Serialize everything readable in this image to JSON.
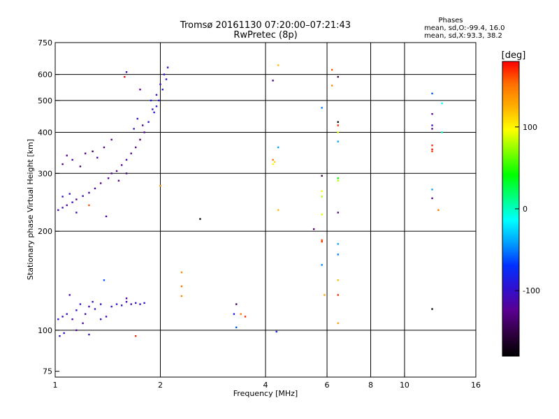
{
  "chart_data": {
    "type": "scatter",
    "title": "Tromsø 20161130 07:20:00–07:21:43",
    "subtitle": "RwPretec (8p)",
    "xlabel": "Frequency [MHz]",
    "ylabel": "Stationary phase Virtual Height [km]",
    "x_scale": "log",
    "y_scale": "log",
    "xlim": [
      1,
      16
    ],
    "ylim": [
      72,
      750
    ],
    "x_ticks": [
      1,
      2,
      4,
      6,
      8,
      10,
      16
    ],
    "x_gridlines": [
      2,
      4,
      6,
      8,
      10
    ],
    "y_ticks": [
      75,
      100,
      200,
      300,
      400,
      500,
      600,
      750
    ],
    "y_gridlines": [
      100,
      200,
      300,
      400,
      500,
      600
    ],
    "grid": true,
    "stats": {
      "heading": "Phases",
      "line1_label": "mean, sd,O:",
      "line1_values": "-99.4, 16.0",
      "line2_label": "mean, sd,X:",
      "line2_values": "93.3, 38.2"
    },
    "colorbar": {
      "label": "[deg]",
      "range": [
        -180,
        180
      ],
      "ticks": [
        -100,
        0,
        100
      ],
      "colormap": [
        "#000000",
        "#300040",
        "#5a0090",
        "#3010d0",
        "#0030ff",
        "#00a0ff",
        "#00ffff",
        "#00ff80",
        "#00ff00",
        "#80ff00",
        "#ffff00",
        "#ffb000",
        "#ff7000",
        "#ff0000"
      ]
    },
    "points": [
      {
        "x": 1.02,
        "y": 232,
        "phase": -110
      },
      {
        "x": 1.05,
        "y": 236,
        "phase": -105
      },
      {
        "x": 1.08,
        "y": 240,
        "phase": -115
      },
      {
        "x": 1.12,
        "y": 245,
        "phase": -100
      },
      {
        "x": 1.15,
        "y": 250,
        "phase": -120
      },
      {
        "x": 1.2,
        "y": 256,
        "phase": -108
      },
      {
        "x": 1.25,
        "y": 262,
        "phase": -112
      },
      {
        "x": 1.3,
        "y": 270,
        "phase": -118
      },
      {
        "x": 1.1,
        "y": 260,
        "phase": -102
      },
      {
        "x": 1.05,
        "y": 255,
        "phase": -98
      },
      {
        "x": 1.15,
        "y": 228,
        "phase": -104
      },
      {
        "x": 1.35,
        "y": 280,
        "phase": -122
      },
      {
        "x": 1.05,
        "y": 320,
        "phase": -130
      },
      {
        "x": 1.08,
        "y": 340,
        "phase": -125
      },
      {
        "x": 1.12,
        "y": 330,
        "phase": -110
      },
      {
        "x": 1.18,
        "y": 315,
        "phase": -135
      },
      {
        "x": 1.22,
        "y": 345,
        "phase": -128
      },
      {
        "x": 1.28,
        "y": 350,
        "phase": -140
      },
      {
        "x": 1.32,
        "y": 335,
        "phase": -115
      },
      {
        "x": 1.38,
        "y": 360,
        "phase": -132
      },
      {
        "x": 1.42,
        "y": 290,
        "phase": -118
      },
      {
        "x": 1.45,
        "y": 300,
        "phase": -126
      },
      {
        "x": 1.5,
        "y": 305,
        "phase": -130
      },
      {
        "x": 1.55,
        "y": 318,
        "phase": -120
      },
      {
        "x": 1.6,
        "y": 330,
        "phase": -112
      },
      {
        "x": 1.65,
        "y": 345,
        "phase": -124
      },
      {
        "x": 1.7,
        "y": 360,
        "phase": -132
      },
      {
        "x": 1.75,
        "y": 380,
        "phase": -140
      },
      {
        "x": 1.8,
        "y": 400,
        "phase": -125
      },
      {
        "x": 1.78,
        "y": 420,
        "phase": -118
      },
      {
        "x": 1.68,
        "y": 410,
        "phase": -110
      },
      {
        "x": 1.72,
        "y": 440,
        "phase": -105
      },
      {
        "x": 1.6,
        "y": 300,
        "phase": -135
      },
      {
        "x": 1.52,
        "y": 285,
        "phase": -128
      },
      {
        "x": 1.85,
        "y": 430,
        "phase": -100
      },
      {
        "x": 1.9,
        "y": 470,
        "phase": -95
      },
      {
        "x": 1.95,
        "y": 520,
        "phase": -110
      },
      {
        "x": 2.0,
        "y": 560,
        "phase": -105
      },
      {
        "x": 2.05,
        "y": 600,
        "phase": -98
      },
      {
        "x": 2.1,
        "y": 630,
        "phase": -102
      },
      {
        "x": 2.08,
        "y": 580,
        "phase": -92
      },
      {
        "x": 2.03,
        "y": 540,
        "phase": -88
      },
      {
        "x": 1.98,
        "y": 500,
        "phase": -96
      },
      {
        "x": 1.92,
        "y": 460,
        "phase": -90
      },
      {
        "x": 1.88,
        "y": 500,
        "phase": -85
      },
      {
        "x": 1.95,
        "y": 480,
        "phase": -80
      },
      {
        "x": 1.75,
        "y": 540,
        "phase": -120
      },
      {
        "x": 1.6,
        "y": 610,
        "phase": -110
      },
      {
        "x": 1.58,
        "y": 590,
        "phase": 180
      },
      {
        "x": 1.45,
        "y": 380,
        "phase": -125
      },
      {
        "x": 1.4,
        "y": 222,
        "phase": -115
      },
      {
        "x": 1.25,
        "y": 240,
        "phase": 160
      },
      {
        "x": 1.02,
        "y": 108,
        "phase": -100
      },
      {
        "x": 1.05,
        "y": 110,
        "phase": -105
      },
      {
        "x": 1.08,
        "y": 112,
        "phase": -98
      },
      {
        "x": 1.12,
        "y": 108,
        "phase": -110
      },
      {
        "x": 1.15,
        "y": 115,
        "phase": -102
      },
      {
        "x": 1.18,
        "y": 120,
        "phase": -95
      },
      {
        "x": 1.22,
        "y": 112,
        "phase": -108
      },
      {
        "x": 1.25,
        "y": 118,
        "phase": -112
      },
      {
        "x": 1.28,
        "y": 122,
        "phase": -100
      },
      {
        "x": 1.3,
        "y": 116,
        "phase": -104
      },
      {
        "x": 1.35,
        "y": 120,
        "phase": -96
      },
      {
        "x": 1.4,
        "y": 110,
        "phase": -108
      },
      {
        "x": 1.45,
        "y": 118,
        "phase": -100
      },
      {
        "x": 1.5,
        "y": 120,
        "phase": -95
      },
      {
        "x": 1.55,
        "y": 119,
        "phase": -102
      },
      {
        "x": 1.6,
        "y": 122,
        "phase": -110
      },
      {
        "x": 1.65,
        "y": 120,
        "phase": -105
      },
      {
        "x": 1.7,
        "y": 121,
        "phase": -98
      },
      {
        "x": 1.75,
        "y": 120,
        "phase": -100
      },
      {
        "x": 1.8,
        "y": 121,
        "phase": -95
      },
      {
        "x": 1.1,
        "y": 128,
        "phase": -112
      },
      {
        "x": 1.2,
        "y": 105,
        "phase": -118
      },
      {
        "x": 1.03,
        "y": 96,
        "phase": -104
      },
      {
        "x": 1.06,
        "y": 98,
        "phase": -100
      },
      {
        "x": 1.15,
        "y": 100,
        "phase": -115
      },
      {
        "x": 1.25,
        "y": 97,
        "phase": -106
      },
      {
        "x": 1.38,
        "y": 142,
        "phase": -60
      },
      {
        "x": 1.35,
        "y": 108,
        "phase": -108
      },
      {
        "x": 1.7,
        "y": 96,
        "phase": 170
      },
      {
        "x": 1.6,
        "y": 125,
        "phase": -120
      },
      {
        "x": 2.0,
        "y": 275,
        "phase": 140
      },
      {
        "x": 2.3,
        "y": 150,
        "phase": 140
      },
      {
        "x": 2.3,
        "y": 136,
        "phase": 150
      },
      {
        "x": 2.3,
        "y": 127,
        "phase": 145
      },
      {
        "x": 2.6,
        "y": 218,
        "phase": -175
      },
      {
        "x": 3.3,
        "y": 120,
        "phase": -140
      },
      {
        "x": 3.25,
        "y": 112,
        "phase": -90
      },
      {
        "x": 3.4,
        "y": 112,
        "phase": 150
      },
      {
        "x": 3.5,
        "y": 110,
        "phase": 170
      },
      {
        "x": 3.3,
        "y": 102,
        "phase": -60
      },
      {
        "x": 4.2,
        "y": 575,
        "phase": -120
      },
      {
        "x": 4.35,
        "y": 640,
        "phase": 120
      },
      {
        "x": 4.2,
        "y": 330,
        "phase": 150
      },
      {
        "x": 4.25,
        "y": 325,
        "phase": 110
      },
      {
        "x": 4.2,
        "y": 320,
        "phase": 100
      },
      {
        "x": 4.35,
        "y": 360,
        "phase": -40
      },
      {
        "x": 4.35,
        "y": 232,
        "phase": 120
      },
      {
        "x": 4.3,
        "y": 99,
        "phase": -80
      },
      {
        "x": 5.5,
        "y": 203,
        "phase": -140
      },
      {
        "x": 5.8,
        "y": 188,
        "phase": 160
      },
      {
        "x": 5.8,
        "y": 186,
        "phase": 170
      },
      {
        "x": 5.8,
        "y": 158,
        "phase": -50
      },
      {
        "x": 5.9,
        "y": 128,
        "phase": 130
      },
      {
        "x": 5.8,
        "y": 475,
        "phase": -50
      },
      {
        "x": 5.8,
        "y": 295,
        "phase": -160
      },
      {
        "x": 5.8,
        "y": 265,
        "phase": 100
      },
      {
        "x": 5.8,
        "y": 255,
        "phase": 80
      },
      {
        "x": 5.8,
        "y": 225,
        "phase": 90
      },
      {
        "x": 6.2,
        "y": 620,
        "phase": 160
      },
      {
        "x": 6.2,
        "y": 555,
        "phase": 140
      },
      {
        "x": 6.45,
        "y": 590,
        "phase": -150
      },
      {
        "x": 6.45,
        "y": 430,
        "phase": -170
      },
      {
        "x": 6.45,
        "y": 420,
        "phase": 170
      },
      {
        "x": 6.45,
        "y": 400,
        "phase": 90
      },
      {
        "x": 6.45,
        "y": 375,
        "phase": -40
      },
      {
        "x": 6.45,
        "y": 290,
        "phase": 40
      },
      {
        "x": 6.45,
        "y": 285,
        "phase": 80
      },
      {
        "x": 6.45,
        "y": 228,
        "phase": -120
      },
      {
        "x": 6.45,
        "y": 183,
        "phase": -40
      },
      {
        "x": 6.45,
        "y": 170,
        "phase": -50
      },
      {
        "x": 6.45,
        "y": 142,
        "phase": 120
      },
      {
        "x": 6.45,
        "y": 128,
        "phase": 170
      },
      {
        "x": 6.45,
        "y": 105,
        "phase": 130
      },
      {
        "x": 12.0,
        "y": 525,
        "phase": -60
      },
      {
        "x": 12.0,
        "y": 455,
        "phase": -120
      },
      {
        "x": 12.0,
        "y": 420,
        "phase": -100
      },
      {
        "x": 12.0,
        "y": 410,
        "phase": -130
      },
      {
        "x": 12.0,
        "y": 365,
        "phase": 170
      },
      {
        "x": 12.0,
        "y": 355,
        "phase": 175
      },
      {
        "x": 12.0,
        "y": 350,
        "phase": 165
      },
      {
        "x": 12.0,
        "y": 268,
        "phase": -40
      },
      {
        "x": 12.0,
        "y": 252,
        "phase": -130
      },
      {
        "x": 12.0,
        "y": 116,
        "phase": -170
      },
      {
        "x": 12.5,
        "y": 232,
        "phase": 150
      },
      {
        "x": 12.8,
        "y": 490,
        "phase": -10
      },
      {
        "x": 12.8,
        "y": 400,
        "phase": 0
      }
    ]
  }
}
